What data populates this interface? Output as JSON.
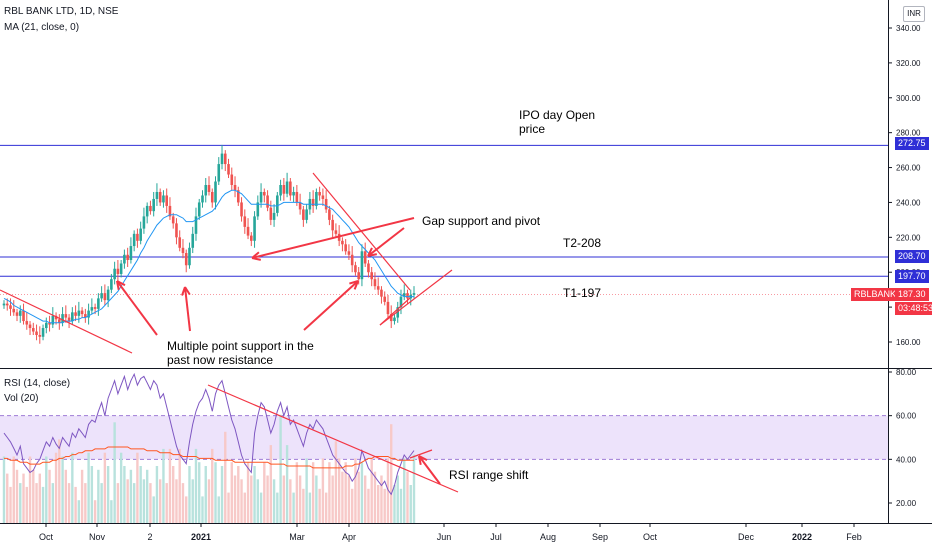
{
  "header": {
    "title": "RBL BANK LTD, 1D, NSE",
    "ma_label": "MA (21, close, 0)",
    "currency": "INR"
  },
  "rsi_panel": {
    "rsi_label": "RSI (14, close)",
    "vol_label": "Vol (20)"
  },
  "colors": {
    "up": "#26a69a",
    "down": "#ef5350",
    "ma": "#2196f3",
    "hline": "#2f2fd6",
    "annotation": "#f23645",
    "rsi_line": "#7e57c2",
    "rsi_band": "#ede3fb",
    "vol_ma": "#ff5722"
  },
  "price_tags": {
    "t_272": "272.75",
    "t_208": "208.70",
    "t_197": "197.70",
    "ticker": "RBLBANK",
    "last": "187.30",
    "countdown": "03:48:53"
  },
  "annotations": {
    "ipo": "IPO day Open\nprice",
    "gap": "Gap support and pivot",
    "t2": "T2-208",
    "t1": "T1-197",
    "multi": "Multiple point support in the\npast now resistance",
    "rsi_shift": "RSI range shift"
  },
  "chart_data": [
    {
      "type": "line",
      "title": "RBL BANK LTD, 1D, NSE",
      "series_note": "daily candles with MA(21)",
      "ylim": [
        150,
        340
      ],
      "y_ticks": [
        "160.00",
        "180.00",
        "200.00",
        "220.00",
        "240.00",
        "260.00",
        "280.00",
        "300.00",
        "320.00",
        "340.00"
      ],
      "x_ticks": [
        "Oct",
        "Nov",
        "2",
        "2021",
        "Mar",
        "Apr",
        "Jun",
        "Jul",
        "Aug",
        "Sep",
        "Oct",
        "Dec",
        "2022",
        "Feb"
      ],
      "grid": false,
      "horizontal_levels": [
        272.75,
        208.7,
        197.7
      ],
      "last_price": 187.3,
      "closes": [
        182,
        181,
        179,
        177,
        175,
        178,
        172,
        170,
        168,
        166,
        164,
        163,
        168,
        171,
        170,
        175,
        173,
        171,
        176,
        174,
        172,
        177,
        175,
        178,
        176,
        174,
        178,
        180,
        179,
        185,
        188,
        184,
        190,
        196,
        202,
        199,
        205,
        210,
        207,
        215,
        222,
        218,
        225,
        232,
        238,
        235,
        242,
        246,
        240,
        244,
        238,
        232,
        228,
        220,
        214,
        211,
        204,
        214,
        222,
        232,
        240,
        244,
        250,
        246,
        240,
        252,
        262,
        268,
        262,
        256,
        250,
        247,
        240,
        232,
        226,
        221,
        218,
        232,
        240,
        246,
        244,
        237,
        230,
        234,
        244,
        250,
        245,
        252,
        244,
        246,
        240,
        236,
        230,
        236,
        242,
        238,
        246,
        244,
        242,
        236,
        230,
        224,
        222,
        218,
        216,
        212,
        210,
        204,
        200,
        196,
        212,
        205,
        200,
        196,
        192,
        190,
        186,
        183,
        176,
        172,
        174,
        180,
        186,
        188,
        185,
        187,
        188
      ],
      "ma21": [
        185,
        184,
        183,
        181,
        180,
        179,
        178,
        177,
        176,
        175,
        174,
        173,
        172,
        172,
        171,
        171,
        171,
        171,
        171,
        172,
        172,
        172,
        173,
        173,
        174,
        174,
        175,
        176,
        177,
        178,
        179,
        181,
        183,
        185,
        187,
        189,
        192,
        195,
        198,
        201,
        204,
        207,
        211,
        214,
        218,
        221,
        224,
        227,
        229,
        231,
        232,
        233,
        233,
        233,
        232,
        231,
        229,
        229,
        229,
        230,
        231,
        232,
        233,
        234,
        235,
        237,
        240,
        243,
        245,
        246,
        247,
        247,
        246,
        245,
        243,
        241,
        239,
        239,
        239,
        239,
        239,
        239,
        238,
        238,
        238,
        239,
        240,
        240,
        240,
        240,
        240,
        240,
        239,
        239,
        239,
        239,
        239,
        239,
        239,
        238,
        237,
        236,
        234,
        232,
        230,
        228,
        226,
        223,
        220,
        217,
        215,
        213,
        211,
        209,
        207,
        204,
        201,
        198,
        195,
        192,
        190,
        188,
        187,
        186,
        186,
        186,
        186
      ],
      "rsi_ylim": [
        10,
        80
      ],
      "rsi_ticks": [
        "20.00",
        "40.00",
        "60.00",
        "80.00"
      ],
      "rsi_band": [
        40,
        60
      ],
      "rsi": [
        52,
        50,
        48,
        45,
        42,
        46,
        38,
        36,
        34,
        35,
        38,
        40,
        44,
        48,
        46,
        50,
        47,
        45,
        50,
        48,
        46,
        52,
        50,
        54,
        52,
        50,
        56,
        58,
        57,
        62,
        66,
        60,
        68,
        72,
        76,
        70,
        74,
        78,
        72,
        76,
        79,
        74,
        77,
        78,
        75,
        72,
        76,
        74,
        68,
        70,
        64,
        58,
        52,
        46,
        42,
        40,
        38,
        48,
        56,
        62,
        66,
        68,
        72,
        68,
        62,
        70,
        74,
        76,
        70,
        64,
        58,
        54,
        48,
        42,
        38,
        36,
        34,
        52,
        60,
        66,
        64,
        58,
        52,
        56,
        62,
        66,
        60,
        64,
        56,
        58,
        54,
        50,
        46,
        52,
        56,
        54,
        58,
        56,
        54,
        50,
        46,
        42,
        40,
        38,
        36,
        34,
        33,
        30,
        32,
        36,
        44,
        40,
        36,
        34,
        32,
        30,
        28,
        30,
        26,
        24,
        28,
        34,
        38,
        42,
        40,
        42,
        44
      ],
      "vol_ma": [
        34,
        34,
        33,
        33,
        33,
        32,
        32,
        32,
        31,
        31,
        31,
        31,
        32,
        32,
        32,
        33,
        33,
        34,
        34,
        35,
        35,
        36,
        36,
        37,
        37,
        38,
        38,
        38,
        39,
        39,
        39,
        39,
        40,
        40,
        40,
        40,
        40,
        40,
        40,
        39,
        39,
        39,
        39,
        39,
        38,
        38,
        38,
        38,
        37,
        37,
        37,
        37,
        36,
        36,
        36,
        35,
        35,
        35,
        35,
        35,
        34,
        34,
        34,
        34,
        34,
        33,
        33,
        33,
        33,
        33,
        33,
        32,
        32,
        32,
        32,
        32,
        32,
        32,
        32,
        32,
        32,
        32,
        31,
        31,
        31,
        31,
        31,
        30,
        30,
        30,
        30,
        30,
        30,
        30,
        30,
        29,
        29,
        29,
        29,
        29,
        29,
        29,
        29,
        29,
        29,
        30,
        30,
        30,
        31,
        31,
        32,
        33,
        34,
        34,
        35,
        35,
        35,
        35,
        35,
        34,
        34,
        33,
        33,
        33,
        33,
        33,
        33
      ]
    }
  ]
}
